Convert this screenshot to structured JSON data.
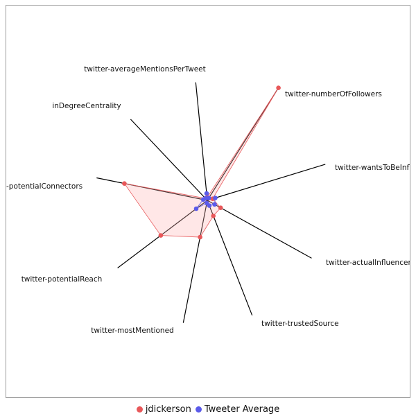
{
  "chart_data": {
    "type": "radar",
    "axes": [
      "twitter-numberOfFollowers",
      "twitter-wantsToBeInflu",
      "twitter-actualInfluencer",
      "twitter-trustedSource",
      "twitter-mostMentioned",
      "twitter-potentialReach",
      "-potentialConnectors",
      "inDegreeCentrality",
      "twitter-averageMentionsPerTweet"
    ],
    "range": [
      0,
      1
    ],
    "series": [
      {
        "name": "jdickerson",
        "color": "#e8585a",
        "fill": "rgba(255,175,175,0.3)",
        "values": [
          0.96,
          0.04,
          0.11,
          0.12,
          0.27,
          0.42,
          0.61,
          0.02,
          0.02
        ]
      },
      {
        "name": "Tweeter Average",
        "color": "#5b5bea",
        "values": [
          0.02,
          0.06,
          0.06,
          0.04,
          0.02,
          0.1,
          0.03,
          0.02,
          0.05
        ]
      }
    ],
    "legend_position": "bottom"
  }
}
